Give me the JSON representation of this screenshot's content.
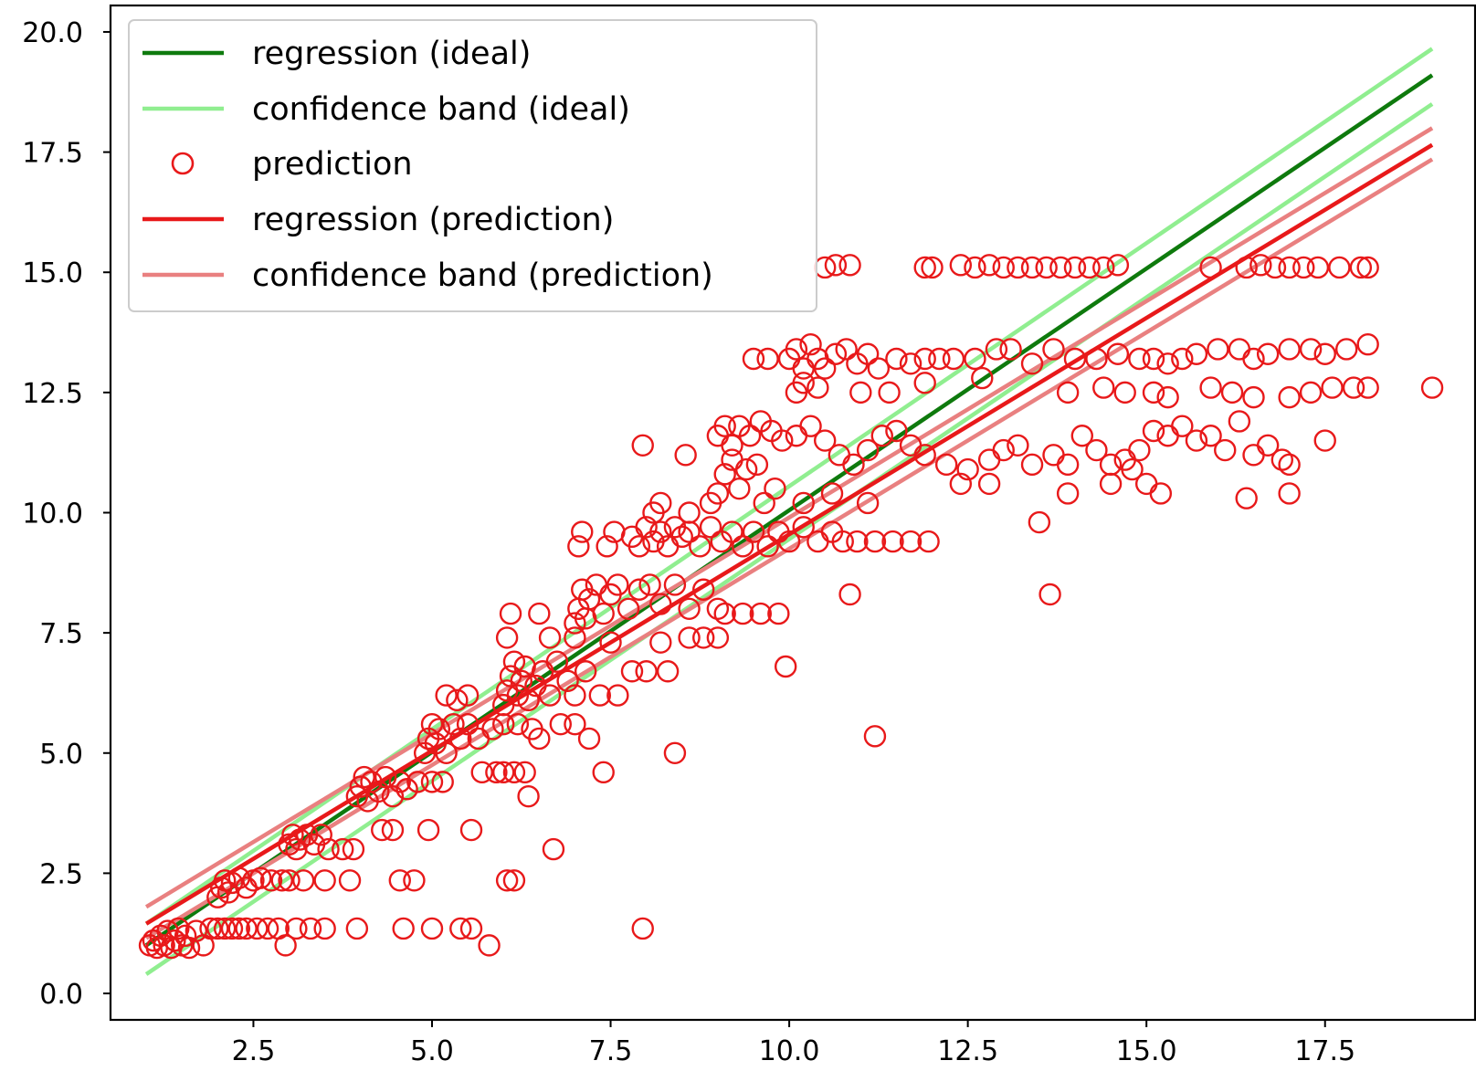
{
  "chart_data": {
    "type": "scatter",
    "xlim": [
      0.5,
      19.6
    ],
    "ylim": [
      -0.55,
      20.55
    ],
    "x_ticks": [
      "2.5",
      "5.0",
      "7.5",
      "10.0",
      "12.5",
      "15.0",
      "17.5"
    ],
    "y_ticks": [
      "0.0",
      "2.5",
      "5.0",
      "7.5",
      "10.0",
      "12.5",
      "15.0",
      "17.5",
      "20.0"
    ],
    "grid": false,
    "legend_placement": "top-left",
    "legend": [
      {
        "label": "regression (ideal)",
        "kind": "line",
        "color": "#0e7a0d"
      },
      {
        "label": "confidence band (ideal)",
        "kind": "line",
        "color": "#90ee90"
      },
      {
        "label": "prediction",
        "kind": "marker",
        "color": "#e8191a"
      },
      {
        "label": "regression (prediction)",
        "kind": "line",
        "color": "#e8191a"
      },
      {
        "label": "confidence band (prediction)",
        "kind": "line",
        "color": "#e98080"
      }
    ],
    "lines": [
      {
        "name": "regression (ideal)",
        "color": "#0e7a0d",
        "points": [
          [
            1.0,
            1.0
          ],
          [
            19.0,
            19.1
          ]
        ]
      },
      {
        "name": "confidence band (ideal)",
        "color": "#90ee90",
        "points": [
          [
            1.0,
            1.45
          ],
          [
            19.0,
            19.65
          ]
        ]
      },
      {
        "name": "confidence band (ideal)",
        "color": "#90ee90",
        "points": [
          [
            1.0,
            0.4
          ],
          [
            19.0,
            18.5
          ]
        ]
      },
      {
        "name": "regression (prediction)",
        "color": "#e8191a",
        "points": [
          [
            1.0,
            1.45
          ],
          [
            19.0,
            17.65
          ]
        ]
      },
      {
        "name": "confidence band (prediction)",
        "color": "#e98080",
        "points": [
          [
            1.0,
            1.8
          ],
          [
            19.0,
            18.0
          ]
        ]
      },
      {
        "name": "confidence band (prediction)",
        "color": "#e98080",
        "points": [
          [
            1.0,
            1.15
          ],
          [
            19.0,
            17.35
          ]
        ]
      }
    ],
    "prediction_points": [
      [
        1.05,
        1.0
      ],
      [
        1.1,
        1.1
      ],
      [
        1.15,
        0.95
      ],
      [
        1.2,
        1.2
      ],
      [
        1.25,
        1.0
      ],
      [
        1.3,
        1.3
      ],
      [
        1.35,
        0.95
      ],
      [
        1.4,
        1.1
      ],
      [
        1.45,
        1.35
      ],
      [
        1.5,
        1.0
      ],
      [
        1.55,
        1.2
      ],
      [
        1.6,
        0.95
      ],
      [
        1.7,
        1.3
      ],
      [
        1.8,
        1.0
      ],
      [
        1.9,
        1.35
      ],
      [
        2.0,
        1.35
      ],
      [
        2.1,
        1.35
      ],
      [
        2.2,
        1.35
      ],
      [
        2.3,
        1.35
      ],
      [
        2.4,
        1.35
      ],
      [
        2.55,
        1.35
      ],
      [
        2.7,
        1.35
      ],
      [
        2.85,
        1.35
      ],
      [
        2.95,
        1.0
      ],
      [
        3.1,
        1.35
      ],
      [
        3.3,
        1.35
      ],
      [
        3.5,
        1.35
      ],
      [
        3.95,
        1.35
      ],
      [
        4.6,
        1.35
      ],
      [
        5.0,
        1.35
      ],
      [
        5.4,
        1.35
      ],
      [
        5.55,
        1.35
      ],
      [
        5.8,
        1.0
      ],
      [
        7.95,
        1.35
      ],
      [
        2.0,
        2.0
      ],
      [
        2.05,
        2.2
      ],
      [
        2.1,
        2.35
      ],
      [
        2.15,
        2.1
      ],
      [
        2.2,
        2.3
      ],
      [
        2.3,
        2.4
      ],
      [
        2.4,
        2.2
      ],
      [
        2.5,
        2.35
      ],
      [
        2.6,
        2.4
      ],
      [
        2.75,
        2.35
      ],
      [
        2.9,
        2.35
      ],
      [
        3.0,
        2.35
      ],
      [
        3.2,
        2.35
      ],
      [
        3.5,
        2.35
      ],
      [
        3.85,
        2.35
      ],
      [
        4.55,
        2.35
      ],
      [
        4.75,
        2.35
      ],
      [
        6.05,
        2.35
      ],
      [
        6.15,
        2.35
      ],
      [
        6.7,
        3.0
      ],
      [
        3.0,
        3.1
      ],
      [
        3.05,
        3.3
      ],
      [
        3.1,
        3.0
      ],
      [
        3.15,
        3.2
      ],
      [
        3.25,
        3.3
      ],
      [
        3.35,
        3.1
      ],
      [
        3.45,
        3.3
      ],
      [
        3.55,
        3.0
      ],
      [
        3.75,
        3.0
      ],
      [
        3.9,
        3.0
      ],
      [
        4.3,
        3.4
      ],
      [
        4.45,
        3.4
      ],
      [
        4.95,
        3.4
      ],
      [
        5.55,
        3.4
      ],
      [
        6.35,
        4.1
      ],
      [
        3.95,
        4.1
      ],
      [
        4.0,
        4.3
      ],
      [
        4.05,
        4.5
      ],
      [
        4.1,
        4.0
      ],
      [
        4.15,
        4.4
      ],
      [
        4.25,
        4.2
      ],
      [
        4.35,
        4.5
      ],
      [
        4.45,
        4.1
      ],
      [
        4.55,
        4.4
      ],
      [
        4.65,
        4.25
      ],
      [
        4.8,
        4.4
      ],
      [
        5.0,
        4.4
      ],
      [
        5.15,
        4.4
      ],
      [
        5.7,
        4.6
      ],
      [
        5.9,
        4.6
      ],
      [
        6.0,
        4.6
      ],
      [
        6.15,
        4.6
      ],
      [
        6.3,
        4.6
      ],
      [
        7.4,
        4.6
      ],
      [
        4.9,
        5.0
      ],
      [
        4.95,
        5.3
      ],
      [
        5.0,
        5.6
      ],
      [
        5.05,
        5.2
      ],
      [
        5.1,
        5.5
      ],
      [
        5.2,
        5.0
      ],
      [
        5.3,
        5.6
      ],
      [
        5.4,
        5.3
      ],
      [
        5.5,
        5.6
      ],
      [
        5.65,
        5.3
      ],
      [
        5.85,
        5.5
      ],
      [
        6.0,
        5.6
      ],
      [
        6.2,
        5.6
      ],
      [
        6.4,
        5.5
      ],
      [
        6.5,
        5.3
      ],
      [
        6.8,
        5.6
      ],
      [
        7.0,
        5.6
      ],
      [
        7.2,
        5.3
      ],
      [
        8.4,
        5.0
      ],
      [
        5.2,
        6.2
      ],
      [
        5.35,
        6.1
      ],
      [
        5.5,
        6.2
      ],
      [
        6.0,
        6.0
      ],
      [
        6.05,
        6.3
      ],
      [
        6.1,
        6.6
      ],
      [
        6.15,
        6.9
      ],
      [
        6.2,
        6.2
      ],
      [
        6.25,
        6.5
      ],
      [
        6.3,
        6.8
      ],
      [
        6.35,
        6.1
      ],
      [
        6.45,
        6.4
      ],
      [
        6.55,
        6.7
      ],
      [
        6.65,
        6.2
      ],
      [
        6.75,
        6.9
      ],
      [
        6.9,
        6.5
      ],
      [
        7.0,
        6.2
      ],
      [
        7.15,
        6.7
      ],
      [
        7.35,
        6.2
      ],
      [
        7.6,
        6.2
      ],
      [
        7.8,
        6.7
      ],
      [
        8.0,
        6.7
      ],
      [
        8.3,
        6.7
      ],
      [
        6.05,
        7.4
      ],
      [
        6.1,
        7.9
      ],
      [
        6.5,
        7.9
      ],
      [
        6.65,
        7.4
      ],
      [
        7.0,
        7.4
      ],
      [
        7.5,
        7.3
      ],
      [
        8.2,
        7.3
      ],
      [
        8.6,
        7.4
      ],
      [
        8.8,
        7.4
      ],
      [
        9.0,
        7.4
      ],
      [
        9.95,
        6.8
      ],
      [
        7.0,
        7.7
      ],
      [
        7.05,
        8.0
      ],
      [
        7.1,
        8.4
      ],
      [
        7.15,
        7.8
      ],
      [
        7.2,
        8.2
      ],
      [
        7.3,
        8.5
      ],
      [
        7.4,
        7.9
      ],
      [
        7.5,
        8.3
      ],
      [
        7.6,
        8.5
      ],
      [
        7.75,
        8.0
      ],
      [
        7.9,
        8.4
      ],
      [
        8.05,
        8.5
      ],
      [
        8.2,
        8.1
      ],
      [
        8.4,
        8.5
      ],
      [
        8.6,
        8.0
      ],
      [
        8.8,
        8.4
      ],
      [
        9.0,
        8.0
      ],
      [
        9.1,
        7.9
      ],
      [
        9.35,
        7.9
      ],
      [
        9.6,
        7.9
      ],
      [
        9.85,
        7.9
      ],
      [
        10.85,
        8.3
      ],
      [
        13.65,
        8.3
      ],
      [
        7.05,
        9.3
      ],
      [
        7.1,
        9.6
      ],
      [
        7.45,
        9.3
      ],
      [
        7.55,
        9.6
      ],
      [
        7.8,
        9.5
      ],
      [
        7.9,
        9.3
      ],
      [
        8.0,
        9.7
      ],
      [
        8.1,
        9.4
      ],
      [
        8.2,
        9.6
      ],
      [
        8.3,
        9.3
      ],
      [
        8.4,
        9.7
      ],
      [
        8.5,
        9.5
      ],
      [
        8.6,
        9.6
      ],
      [
        8.75,
        9.3
      ],
      [
        8.9,
        9.7
      ],
      [
        9.05,
        9.4
      ],
      [
        9.2,
        9.6
      ],
      [
        9.35,
        9.3
      ],
      [
        9.5,
        9.6
      ],
      [
        9.7,
        9.3
      ],
      [
        9.85,
        9.6
      ],
      [
        10.0,
        9.4
      ],
      [
        10.2,
        9.7
      ],
      [
        10.4,
        9.4
      ],
      [
        10.6,
        9.6
      ],
      [
        10.75,
        9.4
      ],
      [
        10.95,
        9.4
      ],
      [
        11.2,
        9.4
      ],
      [
        11.45,
        9.4
      ],
      [
        11.7,
        9.4
      ],
      [
        11.95,
        9.4
      ],
      [
        8.1,
        10.0
      ],
      [
        8.2,
        10.2
      ],
      [
        8.6,
        10.0
      ],
      [
        8.9,
        10.2
      ],
      [
        9.0,
        10.4
      ],
      [
        9.1,
        10.8
      ],
      [
        9.2,
        11.1
      ],
      [
        9.3,
        10.5
      ],
      [
        9.4,
        10.9
      ],
      [
        9.55,
        11.0
      ],
      [
        9.65,
        10.2
      ],
      [
        9.8,
        10.5
      ],
      [
        10.2,
        10.2
      ],
      [
        10.6,
        10.4
      ],
      [
        11.1,
        10.2
      ],
      [
        9.0,
        11.6
      ],
      [
        9.1,
        11.8
      ],
      [
        9.2,
        11.4
      ],
      [
        9.3,
        11.8
      ],
      [
        9.45,
        11.6
      ],
      [
        9.6,
        11.9
      ],
      [
        9.75,
        11.7
      ],
      [
        9.9,
        11.5
      ],
      [
        10.1,
        11.6
      ],
      [
        10.3,
        11.8
      ],
      [
        10.5,
        11.5
      ],
      [
        10.7,
        11.2
      ],
      [
        10.9,
        11.0
      ],
      [
        11.1,
        11.3
      ],
      [
        11.3,
        11.6
      ],
      [
        11.5,
        11.7
      ],
      [
        11.7,
        11.4
      ],
      [
        11.9,
        11.2
      ],
      [
        12.2,
        11.0
      ],
      [
        12.5,
        10.9
      ],
      [
        12.8,
        11.1
      ],
      [
        13.0,
        11.3
      ],
      [
        13.2,
        11.4
      ],
      [
        13.4,
        11.0
      ],
      [
        13.7,
        11.2
      ],
      [
        13.9,
        11.0
      ],
      [
        14.1,
        11.6
      ],
      [
        14.3,
        11.3
      ],
      [
        14.5,
        11.0
      ],
      [
        14.7,
        11.1
      ],
      [
        14.9,
        11.3
      ],
      [
        15.1,
        11.7
      ],
      [
        15.3,
        11.6
      ],
      [
        15.5,
        11.8
      ],
      [
        15.7,
        11.5
      ],
      [
        15.9,
        11.6
      ],
      [
        16.1,
        11.3
      ],
      [
        16.3,
        11.9
      ],
      [
        16.5,
        11.2
      ],
      [
        16.7,
        11.4
      ],
      [
        16.9,
        11.1
      ],
      [
        17.0,
        11.0
      ],
      [
        17.5,
        11.5
      ],
      [
        12.4,
        10.6
      ],
      [
        12.8,
        10.6
      ],
      [
        13.5,
        9.8
      ],
      [
        13.9,
        10.4
      ],
      [
        14.5,
        10.6
      ],
      [
        14.8,
        10.9
      ],
      [
        15.0,
        10.6
      ],
      [
        15.2,
        10.4
      ],
      [
        16.4,
        10.3
      ],
      [
        17.0,
        10.4
      ],
      [
        7.95,
        11.4
      ],
      [
        8.55,
        11.2
      ],
      [
        11.2,
        5.35
      ],
      [
        9.5,
        13.2
      ],
      [
        9.7,
        13.2
      ],
      [
        10.0,
        13.2
      ],
      [
        10.1,
        13.4
      ],
      [
        10.2,
        13.0
      ],
      [
        10.3,
        13.5
      ],
      [
        10.4,
        13.2
      ],
      [
        10.5,
        13.0
      ],
      [
        10.65,
        13.3
      ],
      [
        10.8,
        13.4
      ],
      [
        10.95,
        13.1
      ],
      [
        11.1,
        13.3
      ],
      [
        11.25,
        13.0
      ],
      [
        11.5,
        13.2
      ],
      [
        11.7,
        13.1
      ],
      [
        11.9,
        13.2
      ],
      [
        12.1,
        13.2
      ],
      [
        12.3,
        13.2
      ],
      [
        12.6,
        13.2
      ],
      [
        12.9,
        13.4
      ],
      [
        13.1,
        13.4
      ],
      [
        13.4,
        13.1
      ],
      [
        13.7,
        13.4
      ],
      [
        14.0,
        13.2
      ],
      [
        14.3,
        13.2
      ],
      [
        14.6,
        13.3
      ],
      [
        14.9,
        13.2
      ],
      [
        15.1,
        13.2
      ],
      [
        15.3,
        13.1
      ],
      [
        15.5,
        13.2
      ],
      [
        15.7,
        13.3
      ],
      [
        16.0,
        13.4
      ],
      [
        16.3,
        13.4
      ],
      [
        16.5,
        13.2
      ],
      [
        16.7,
        13.3
      ],
      [
        17.0,
        13.4
      ],
      [
        17.3,
        13.4
      ],
      [
        17.5,
        13.3
      ],
      [
        17.8,
        13.4
      ],
      [
        18.1,
        13.5
      ],
      [
        10.1,
        12.5
      ],
      [
        10.2,
        12.7
      ],
      [
        10.4,
        12.6
      ],
      [
        11.0,
        12.5
      ],
      [
        11.4,
        12.5
      ],
      [
        11.9,
        12.7
      ],
      [
        12.7,
        12.8
      ],
      [
        13.9,
        12.5
      ],
      [
        14.4,
        12.6
      ],
      [
        14.7,
        12.5
      ],
      [
        15.1,
        12.5
      ],
      [
        15.3,
        12.4
      ],
      [
        15.9,
        12.6
      ],
      [
        16.2,
        12.5
      ],
      [
        16.5,
        12.4
      ],
      [
        17.0,
        12.4
      ],
      [
        17.3,
        12.5
      ],
      [
        17.6,
        12.6
      ],
      [
        17.9,
        12.6
      ],
      [
        18.1,
        12.6
      ],
      [
        19.0,
        12.6
      ],
      [
        10.5,
        15.1
      ],
      [
        10.65,
        15.15
      ],
      [
        10.85,
        15.15
      ],
      [
        11.9,
        15.1
      ],
      [
        12.0,
        15.1
      ],
      [
        12.4,
        15.15
      ],
      [
        12.6,
        15.1
      ],
      [
        12.8,
        15.15
      ],
      [
        13.0,
        15.1
      ],
      [
        13.2,
        15.1
      ],
      [
        13.4,
        15.1
      ],
      [
        13.6,
        15.1
      ],
      [
        13.8,
        15.1
      ],
      [
        14.0,
        15.1
      ],
      [
        14.2,
        15.1
      ],
      [
        14.4,
        15.1
      ],
      [
        14.6,
        15.15
      ],
      [
        15.9,
        15.1
      ],
      [
        16.4,
        15.1
      ],
      [
        16.6,
        15.15
      ],
      [
        16.8,
        15.1
      ],
      [
        17.0,
        15.1
      ],
      [
        17.2,
        15.1
      ],
      [
        17.4,
        15.1
      ],
      [
        17.7,
        15.1
      ],
      [
        18.0,
        15.1
      ],
      [
        18.1,
        15.1
      ]
    ]
  }
}
